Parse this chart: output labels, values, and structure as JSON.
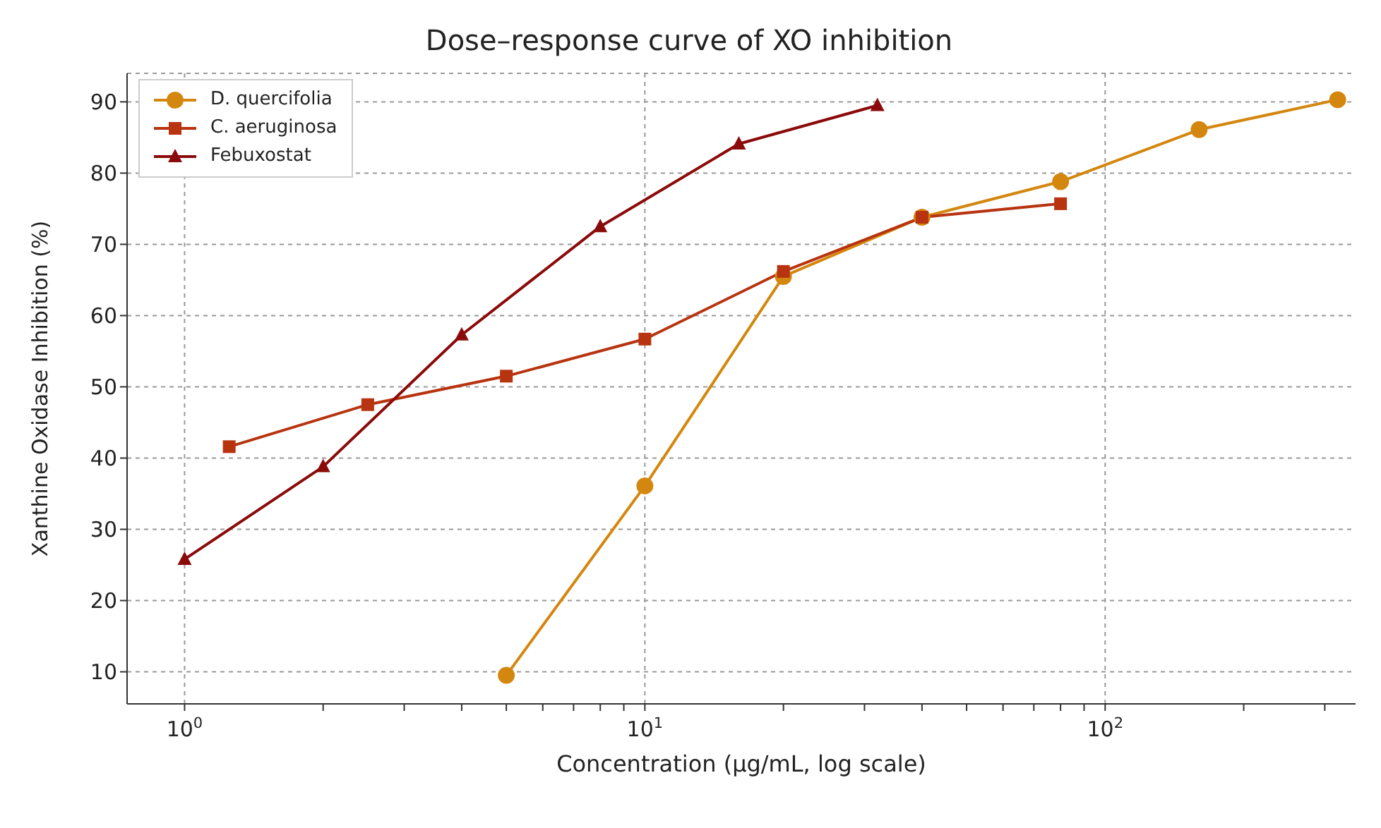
{
  "chart_data": {
    "type": "line",
    "title": "Dose–response curve of XO inhibition",
    "xlabel": "Concentration (μg/mL, log scale)",
    "ylabel": "Xanthine Oxidase Inhibition (%)",
    "log": "x",
    "grid": true,
    "legend": "top left",
    "line_style": "solid",
    "xlim": [
      0.75,
      350
    ],
    "ylim": [
      5.5,
      94
    ],
    "xticks": [
      {
        "value": 1,
        "label": "10$^{0}$"
      },
      {
        "value": 2,
        "label": null
      },
      {
        "value": 3,
        "label": null
      },
      {
        "value": 4,
        "label": null
      },
      {
        "value": 5,
        "label": null
      },
      {
        "value": 6,
        "label": null
      },
      {
        "value": 7,
        "label": null
      },
      {
        "value": 8,
        "label": null
      },
      {
        "value": 9,
        "label": null
      },
      {
        "value": 10,
        "label": "10$^{1}$"
      },
      {
        "value": 20,
        "label": null
      },
      {
        "value": 30,
        "label": null
      },
      {
        "value": 40,
        "label": null
      },
      {
        "value": 50,
        "label": null
      },
      {
        "value": 60,
        "label": null
      },
      {
        "value": 70,
        "label": null
      },
      {
        "value": 80,
        "label": null
      },
      {
        "value": 90,
        "label": null
      },
      {
        "value": 100,
        "label": "10$^{2}$"
      },
      {
        "value": 200,
        "label": null
      },
      {
        "value": 300,
        "label": null
      }
    ],
    "yticks": [
      10,
      20,
      30,
      40,
      50,
      60,
      70,
      80,
      90
    ],
    "series": [
      {
        "name": "D. quercifolia",
        "color": "#d4870f",
        "marker": "circle",
        "x": [
          5,
          10,
          20,
          40,
          80,
          160,
          320
        ],
        "values": [
          9.5,
          36.1,
          65.5,
          73.8,
          78.8,
          86.1,
          90.3
        ]
      },
      {
        "name": "C. aeruginosa",
        "color": "#b8330f",
        "marker": "square",
        "x": [
          1.25,
          2.5,
          5,
          10,
          20,
          40,
          80
        ],
        "values": [
          41.6,
          47.5,
          51.5,
          56.7,
          66.2,
          73.8,
          75.7
        ]
      },
      {
        "name": "Febuxostat",
        "color": "#8b0a0a",
        "marker": "triangle",
        "x": [
          1,
          2,
          4,
          8,
          16,
          32
        ],
        "values": [
          25.8,
          38.8,
          57.3,
          72.5,
          84.1,
          89.5
        ]
      }
    ]
  }
}
